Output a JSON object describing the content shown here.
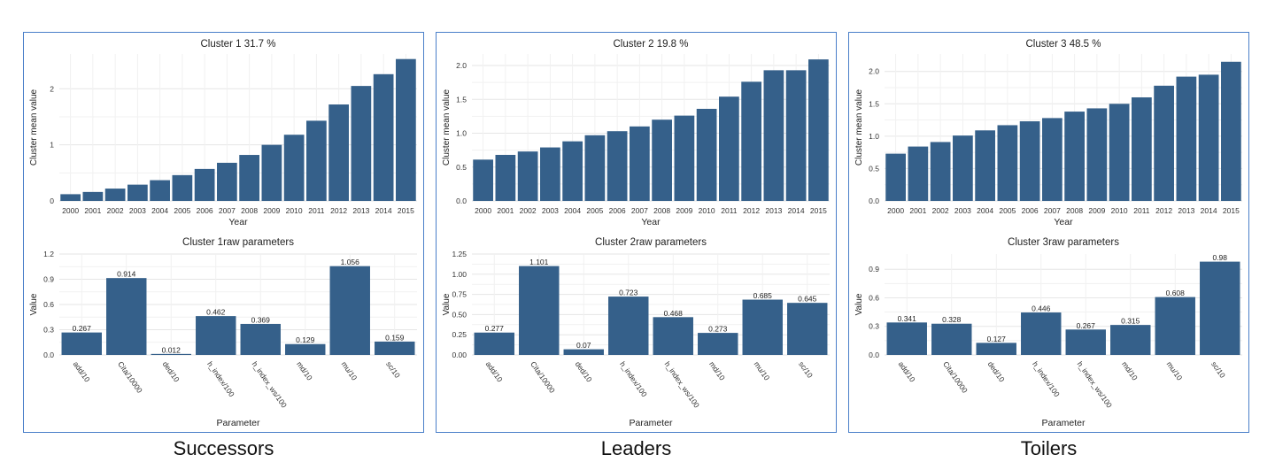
{
  "colors": {
    "bar": "#35608a",
    "grid": "#e6e6e6",
    "border": "#4a7fc9"
  },
  "panels": [
    {
      "caption": "Successors",
      "chart_data": [
        {
          "type": "bar",
          "title": "Cluster  1 31.7 %",
          "xlabel": "Year",
          "ylabel": "Cluster mean value",
          "ylim": [
            0,
            2.62
          ],
          "yticks": [
            0,
            1,
            2
          ],
          "ytick_labels": [
            "0",
            "1",
            "2"
          ],
          "categories": [
            "2000",
            "2001",
            "2002",
            "2003",
            "2004",
            "2005",
            "2006",
            "2007",
            "2008",
            "2009",
            "2010",
            "2011",
            "2012",
            "2013",
            "2014",
            "2015"
          ],
          "values": [
            0.12,
            0.16,
            0.22,
            0.29,
            0.37,
            0.46,
            0.57,
            0.68,
            0.82,
            1.0,
            1.18,
            1.43,
            1.72,
            2.05,
            2.26,
            2.53
          ]
        },
        {
          "type": "bar",
          "title": "Cluster 1raw parameters",
          "xlabel": "Parameter",
          "ylabel": "Value",
          "ylim": [
            0,
            1.2
          ],
          "yticks": [
            0,
            0.3,
            0.6,
            0.9,
            1.2
          ],
          "ytick_labels": [
            "0.0",
            "0.3",
            "0.6",
            "0.9",
            "1.2"
          ],
          "categories": [
            "add/10",
            "Cita/10000",
            "ded/10",
            "h_index/100",
            "h_index_ws/100",
            "md/10",
            "mu/10",
            "sc/10"
          ],
          "values": [
            0.267,
            0.914,
            0.012,
            0.462,
            0.369,
            0.129,
            1.056,
            0.159
          ],
          "data_labels": [
            "0.267",
            "0.914",
            "0.012",
            "0.462",
            "0.369",
            "0.129",
            "1.056",
            "0.159"
          ]
        }
      ]
    },
    {
      "caption": "Leaders",
      "chart_data": [
        {
          "type": "bar",
          "title": "Cluster  2 19.8 %",
          "xlabel": "Year",
          "ylabel": "Cluster mean value",
          "ylim": [
            0,
            2.17
          ],
          "yticks": [
            0,
            0.5,
            1.0,
            1.5,
            2.0
          ],
          "ytick_labels": [
            "0.0",
            "0.5",
            "1.0",
            "1.5",
            "2.0"
          ],
          "categories": [
            "2000",
            "2001",
            "2002",
            "2003",
            "2004",
            "2005",
            "2006",
            "2007",
            "2008",
            "2009",
            "2010",
            "2011",
            "2012",
            "2013",
            "2014",
            "2015"
          ],
          "values": [
            0.61,
            0.68,
            0.73,
            0.79,
            0.88,
            0.97,
            1.03,
            1.1,
            1.2,
            1.26,
            1.36,
            1.54,
            1.76,
            1.93,
            1.93,
            2.09
          ]
        },
        {
          "type": "bar",
          "title": "Cluster 2raw parameters",
          "xlabel": "Parameter",
          "ylabel": "Value",
          "ylim": [
            0,
            1.25
          ],
          "yticks": [
            0,
            0.25,
            0.5,
            0.75,
            1.0,
            1.25
          ],
          "ytick_labels": [
            "0.00",
            "0.25",
            "0.50",
            "0.75",
            "1.00",
            "1.25"
          ],
          "categories": [
            "add/10",
            "Cita/10000",
            "ded/10",
            "h_index/100",
            "h_index_ws/100",
            "md/10",
            "mu/10",
            "sc/10"
          ],
          "values": [
            0.277,
            1.101,
            0.07,
            0.723,
            0.468,
            0.273,
            0.685,
            0.645
          ],
          "data_labels": [
            "0.277",
            "1.101",
            "0.07",
            "0.723",
            "0.468",
            "0.273",
            "0.685",
            "0.645"
          ]
        }
      ]
    },
    {
      "caption": "Toilers",
      "chart_data": [
        {
          "type": "bar",
          "title": "Cluster  3 48.5 %",
          "xlabel": "Year",
          "ylabel": "Cluster mean value",
          "ylim": [
            0,
            2.27
          ],
          "yticks": [
            0,
            0.5,
            1.0,
            1.5,
            2.0
          ],
          "ytick_labels": [
            "0.0",
            "0.5",
            "1.0",
            "1.5",
            "2.0"
          ],
          "categories": [
            "2000",
            "2001",
            "2002",
            "2003",
            "2004",
            "2005",
            "2006",
            "2007",
            "2008",
            "2009",
            "2010",
            "2011",
            "2012",
            "2013",
            "2014",
            "2015"
          ],
          "values": [
            0.73,
            0.84,
            0.91,
            1.01,
            1.09,
            1.17,
            1.23,
            1.28,
            1.38,
            1.43,
            1.5,
            1.6,
            1.78,
            1.92,
            1.95,
            2.15
          ]
        },
        {
          "type": "bar",
          "title": "Cluster 3raw parameters",
          "xlabel": "Parameter",
          "ylabel": "Value",
          "ylim": [
            0,
            1.06
          ],
          "yticks": [
            0,
            0.3,
            0.6,
            0.9
          ],
          "ytick_labels": [
            "0.0",
            "0.3",
            "0.6",
            "0.9"
          ],
          "categories": [
            "add/10",
            "Cita/10000",
            "ded/10",
            "h_index/100",
            "h_index_ws/100",
            "md/10",
            "mu/10",
            "sc/10"
          ],
          "values": [
            0.341,
            0.328,
            0.127,
            0.446,
            0.267,
            0.315,
            0.608,
            0.98
          ],
          "data_labels": [
            "0.341",
            "0.328",
            "0.127",
            "0.446",
            "0.267",
            "0.315",
            "0.608",
            "0.98"
          ]
        }
      ]
    }
  ]
}
